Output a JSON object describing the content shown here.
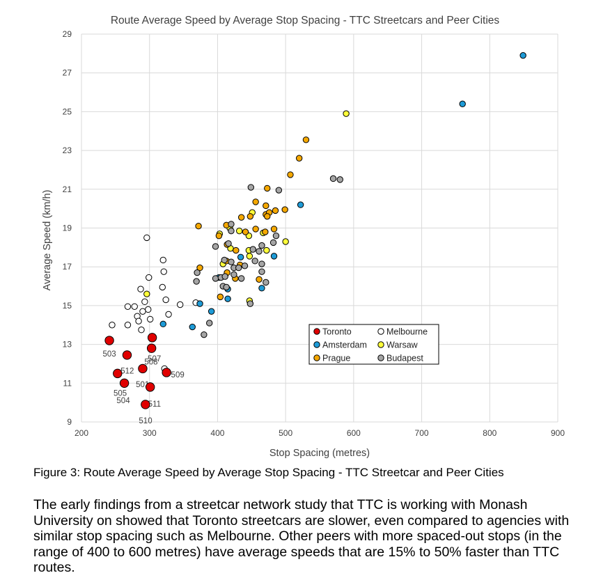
{
  "chart_data": {
    "type": "scatter",
    "title": "Route Average Speed by Average Stop Spacing - TTC Streetcars and Peer Cities",
    "xlabel": "Stop Spacing (metres)",
    "ylabel": "Average Speed (km/h)",
    "xlim": [
      200,
      900
    ],
    "ylim": [
      9,
      29
    ],
    "xticks": [
      200,
      300,
      400,
      500,
      600,
      700,
      800,
      900
    ],
    "yticks": [
      9,
      11,
      13,
      15,
      17,
      19,
      21,
      23,
      25,
      27,
      29
    ],
    "grid": true,
    "legend_position": "lower-right",
    "series": [
      {
        "name": "Toronto",
        "color": "#e00000",
        "points": [
          {
            "x": 241,
            "y": 13.2,
            "label": "503"
          },
          {
            "x": 267,
            "y": 12.45,
            "label": ""
          },
          {
            "x": 304,
            "y": 13.35,
            "label": ""
          },
          {
            "x": 303,
            "y": 12.8,
            "label": "507"
          },
          {
            "x": 253,
            "y": 11.5,
            "label": "512"
          },
          {
            "x": 290,
            "y": 11.75,
            "label": "508"
          },
          {
            "x": 325,
            "y": 11.55,
            "label": "509"
          },
          {
            "x": 263,
            "y": 11.0,
            "label": "505"
          },
          {
            "x": 301,
            "y": 10.8,
            "label": "501"
          },
          {
            "x": 294,
            "y": 9.9,
            "label": "511"
          }
        ],
        "unplaced_labels": [
          "504",
          "510"
        ]
      },
      {
        "name": "Melbourne",
        "color": "#ffffff",
        "points": [
          {
            "x": 296,
            "y": 18.5
          },
          {
            "x": 320,
            "y": 17.35
          },
          {
            "x": 321,
            "y": 16.75
          },
          {
            "x": 299,
            "y": 16.45
          },
          {
            "x": 319,
            "y": 15.95
          },
          {
            "x": 287,
            "y": 15.85
          },
          {
            "x": 324,
            "y": 15.3
          },
          {
            "x": 293,
            "y": 15.2
          },
          {
            "x": 345,
            "y": 15.05
          },
          {
            "x": 368,
            "y": 15.15
          },
          {
            "x": 268,
            "y": 14.95
          },
          {
            "x": 278,
            "y": 14.95
          },
          {
            "x": 298,
            "y": 14.8
          },
          {
            "x": 290,
            "y": 14.7
          },
          {
            "x": 328,
            "y": 14.55
          },
          {
            "x": 282,
            "y": 14.45
          },
          {
            "x": 284,
            "y": 14.2
          },
          {
            "x": 301,
            "y": 14.3
          },
          {
            "x": 245,
            "y": 14.0
          },
          {
            "x": 268,
            "y": 14.0
          },
          {
            "x": 288,
            "y": 13.75
          },
          {
            "x": 322,
            "y": 11.75
          }
        ]
      },
      {
        "name": "Amsterdam",
        "color": "#1e9bd7",
        "points": [
          {
            "x": 849,
            "y": 27.9
          },
          {
            "x": 760,
            "y": 25.4
          },
          {
            "x": 522,
            "y": 20.2
          },
          {
            "x": 483,
            "y": 17.55
          },
          {
            "x": 434,
            "y": 17.5
          },
          {
            "x": 465,
            "y": 15.9
          },
          {
            "x": 415,
            "y": 15.85
          },
          {
            "x": 415,
            "y": 15.35
          },
          {
            "x": 374,
            "y": 15.1
          },
          {
            "x": 391,
            "y": 14.7
          },
          {
            "x": 320,
            "y": 14.05
          },
          {
            "x": 363,
            "y": 13.9
          },
          {
            "x": 402,
            "y": 16.45
          }
        ]
      },
      {
        "name": "Warsaw",
        "color": "#ffff3a",
        "points": [
          {
            "x": 589,
            "y": 24.9
          },
          {
            "x": 451,
            "y": 19.8
          },
          {
            "x": 418,
            "y": 19.0
          },
          {
            "x": 432,
            "y": 18.85
          },
          {
            "x": 403,
            "y": 18.7
          },
          {
            "x": 467,
            "y": 18.75
          },
          {
            "x": 446,
            "y": 18.6
          },
          {
            "x": 419,
            "y": 17.95
          },
          {
            "x": 446,
            "y": 17.85
          },
          {
            "x": 472,
            "y": 17.85
          },
          {
            "x": 447,
            "y": 17.55
          },
          {
            "x": 408,
            "y": 17.15
          },
          {
            "x": 500,
            "y": 18.3
          },
          {
            "x": 447,
            "y": 15.25
          },
          {
            "x": 296,
            "y": 15.6
          }
        ]
      },
      {
        "name": "Prague",
        "color": "#f5a800",
        "points": [
          {
            "x": 530,
            "y": 23.55
          },
          {
            "x": 520,
            "y": 22.6
          },
          {
            "x": 507,
            "y": 21.75
          },
          {
            "x": 473,
            "y": 21.05
          },
          {
            "x": 456,
            "y": 20.35
          },
          {
            "x": 471,
            "y": 20.15
          },
          {
            "x": 485,
            "y": 19.9
          },
          {
            "x": 499,
            "y": 19.95
          },
          {
            "x": 471,
            "y": 19.7
          },
          {
            "x": 476,
            "y": 19.8
          },
          {
            "x": 473,
            "y": 19.6
          },
          {
            "x": 435,
            "y": 19.55
          },
          {
            "x": 448,
            "y": 19.6
          },
          {
            "x": 413,
            "y": 19.15
          },
          {
            "x": 372,
            "y": 19.1
          },
          {
            "x": 456,
            "y": 18.95
          },
          {
            "x": 470,
            "y": 18.8
          },
          {
            "x": 483,
            "y": 18.95
          },
          {
            "x": 441,
            "y": 18.8
          },
          {
            "x": 402,
            "y": 18.6
          },
          {
            "x": 414,
            "y": 18.15
          },
          {
            "x": 427,
            "y": 17.85
          },
          {
            "x": 413,
            "y": 17.3
          },
          {
            "x": 433,
            "y": 17.1
          },
          {
            "x": 374,
            "y": 16.95
          },
          {
            "x": 414,
            "y": 16.7
          },
          {
            "x": 461,
            "y": 16.35
          },
          {
            "x": 426,
            "y": 16.4
          },
          {
            "x": 404,
            "y": 15.45
          }
        ]
      },
      {
        "name": "Budapest",
        "color": "#a5a5a5",
        "points": [
          {
            "x": 570,
            "y": 21.55
          },
          {
            "x": 580,
            "y": 21.5
          },
          {
            "x": 449,
            "y": 21.1
          },
          {
            "x": 490,
            "y": 20.95
          },
          {
            "x": 420,
            "y": 19.2
          },
          {
            "x": 486,
            "y": 18.6
          },
          {
            "x": 482,
            "y": 18.25
          },
          {
            "x": 397,
            "y": 18.05
          },
          {
            "x": 416,
            "y": 18.2
          },
          {
            "x": 465,
            "y": 18.1
          },
          {
            "x": 452,
            "y": 17.9
          },
          {
            "x": 461,
            "y": 17.8
          },
          {
            "x": 420,
            "y": 18.85
          },
          {
            "x": 410,
            "y": 17.35
          },
          {
            "x": 420,
            "y": 17.25
          },
          {
            "x": 455,
            "y": 17.3
          },
          {
            "x": 465,
            "y": 17.15
          },
          {
            "x": 440,
            "y": 17.05
          },
          {
            "x": 424,
            "y": 16.95
          },
          {
            "x": 431,
            "y": 16.95
          },
          {
            "x": 465,
            "y": 16.75
          },
          {
            "x": 370,
            "y": 16.7
          },
          {
            "x": 397,
            "y": 16.4
          },
          {
            "x": 405,
            "y": 16.45
          },
          {
            "x": 411,
            "y": 16.5
          },
          {
            "x": 424,
            "y": 16.6
          },
          {
            "x": 435,
            "y": 16.4
          },
          {
            "x": 369,
            "y": 16.25
          },
          {
            "x": 408,
            "y": 16.0
          },
          {
            "x": 413,
            "y": 15.95
          },
          {
            "x": 471,
            "y": 16.2
          },
          {
            "x": 448,
            "y": 15.1
          },
          {
            "x": 388,
            "y": 14.1
          },
          {
            "x": 380,
            "y": 13.5
          }
        ]
      }
    ]
  },
  "figure_caption": "Figure 3: Route Average Speed by Average Stop Spacing - TTC Streetcar and Peer Cities",
  "paragraph": "The early findings from a streetcar network study that TTC is working with Monash University on showed that Toronto streetcars are slower, even compared to agencies with similar stop spacing such as Melbourne. Other peers with more spaced-out stops (in the range of 400 to 600 metres) have average speeds that are 15% to 50% faster than TTC routes."
}
